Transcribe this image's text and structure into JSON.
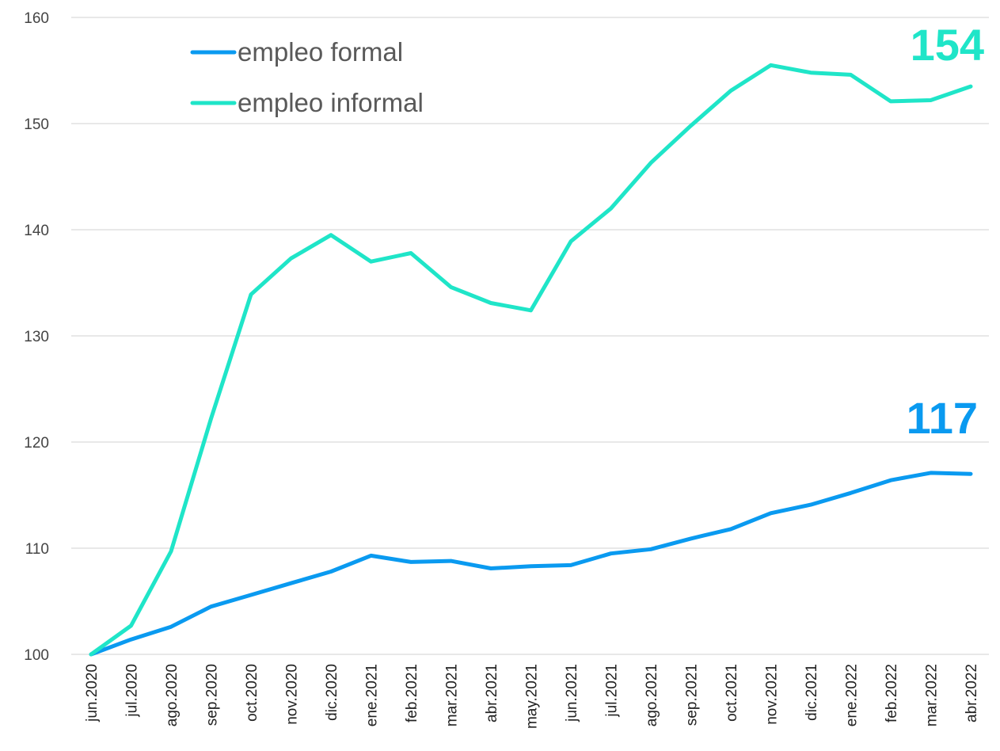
{
  "chart_data": {
    "type": "line",
    "title": "",
    "xlabel": "",
    "ylabel": "",
    "ylim": [
      100,
      160
    ],
    "yticks": [
      100,
      110,
      120,
      130,
      140,
      150,
      160
    ],
    "grid": true,
    "legend_position": "top-left",
    "categories": [
      "jun.2020",
      "jul.2020",
      "ago.2020",
      "sep.2020",
      "oct.2020",
      "nov.2020",
      "dic.2020",
      "ene.2021",
      "feb.2021",
      "mar.2021",
      "abr.2021",
      "may.2021",
      "jun.2021",
      "jul.2021",
      "ago.2021",
      "sep.2021",
      "oct.2021",
      "nov.2021",
      "dic.2021",
      "ene.2022",
      "feb.2022",
      "mar.2022",
      "abr.2022"
    ],
    "series": [
      {
        "name": "empleo formal",
        "color": "#0a9af0",
        "values": [
          100.0,
          101.4,
          102.6,
          104.5,
          105.6,
          106.7,
          107.8,
          109.3,
          108.7,
          108.8,
          108.1,
          108.3,
          108.4,
          109.5,
          109.9,
          110.9,
          111.8,
          113.3,
          114.1,
          115.2,
          116.4,
          117.1,
          117.0
        ],
        "end_label": "117"
      },
      {
        "name": "empleo informal",
        "color": "#1fe5c8",
        "values": [
          100.0,
          102.7,
          109.7,
          122.2,
          133.9,
          137.3,
          139.5,
          137.0,
          137.8,
          134.6,
          133.1,
          132.4,
          138.9,
          142.0,
          146.3,
          149.8,
          153.1,
          155.5,
          154.8,
          154.6,
          152.1,
          152.2,
          153.5
        ],
        "end_label": "154"
      }
    ]
  }
}
